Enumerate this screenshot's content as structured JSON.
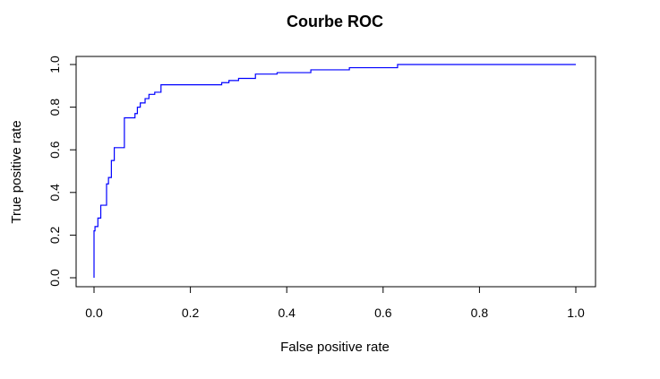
{
  "chart_data": {
    "type": "line",
    "title": "Courbe ROC",
    "xlabel": "False positive rate",
    "ylabel": "True positive rate",
    "xlim": [
      0,
      1
    ],
    "ylim": [
      0,
      1
    ],
    "x_ticks": [
      "0.0",
      "0.2",
      "0.4",
      "0.6",
      "0.8",
      "1.0"
    ],
    "y_ticks": [
      "0.0",
      "0.2",
      "0.4",
      "0.6",
      "0.8",
      "1.0"
    ],
    "grid": false,
    "legend": "none",
    "line_color": "#0000ff",
    "series": [
      {
        "x": [
          0.0,
          0.0,
          0.002,
          0.002,
          0.008,
          0.008,
          0.014,
          0.014,
          0.026,
          0.026,
          0.03,
          0.03,
          0.036,
          0.036,
          0.042,
          0.042,
          0.05,
          0.05,
          0.063,
          0.063,
          0.085,
          0.085,
          0.09,
          0.09,
          0.096,
          0.096,
          0.106,
          0.106,
          0.114,
          0.114,
          0.126,
          0.126,
          0.139,
          0.139,
          0.265,
          0.265,
          0.28,
          0.28,
          0.3,
          0.3,
          0.335,
          0.335,
          0.38,
          0.38,
          0.45,
          0.45,
          0.53,
          0.53,
          0.63,
          0.63,
          1.0
        ],
        "y": [
          0.0,
          0.22,
          0.22,
          0.24,
          0.24,
          0.28,
          0.28,
          0.34,
          0.34,
          0.44,
          0.44,
          0.47,
          0.47,
          0.55,
          0.55,
          0.61,
          0.61,
          0.61,
          0.61,
          0.75,
          0.75,
          0.77,
          0.77,
          0.8,
          0.8,
          0.82,
          0.82,
          0.84,
          0.84,
          0.86,
          0.86,
          0.87,
          0.87,
          0.905,
          0.905,
          0.915,
          0.915,
          0.925,
          0.925,
          0.935,
          0.935,
          0.955,
          0.955,
          0.962,
          0.962,
          0.975,
          0.975,
          0.985,
          0.985,
          1.0,
          1.0
        ]
      }
    ]
  }
}
